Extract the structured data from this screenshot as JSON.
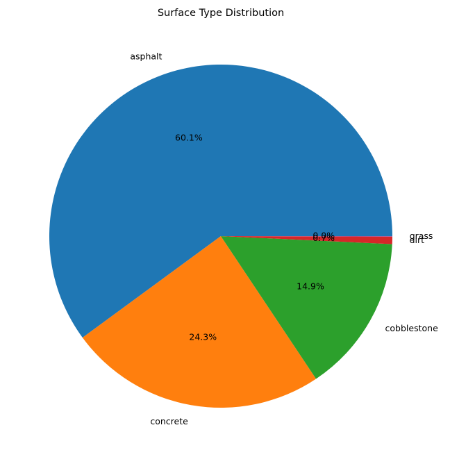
{
  "chart_data": {
    "type": "pie",
    "title": "Surface Type Distribution",
    "slices": [
      {
        "label": "asphalt",
        "value": 60.1,
        "pct_label": "60.1%",
        "color": "#1f77b4"
      },
      {
        "label": "concrete",
        "value": 24.3,
        "pct_label": "24.3%",
        "color": "#ff7f0e"
      },
      {
        "label": "cobblestone",
        "value": 14.9,
        "pct_label": "14.9%",
        "color": "#2ca02c"
      },
      {
        "label": "dirt",
        "value": 0.7,
        "pct_label": "0.7%",
        "color": "#d62728"
      },
      {
        "label": "grass",
        "value": 0.04,
        "pct_label": "0.0%",
        "color": "#9467bd"
      }
    ],
    "start_angle": "0° (3 o'clock), counter-clockwise",
    "legend": "none"
  }
}
